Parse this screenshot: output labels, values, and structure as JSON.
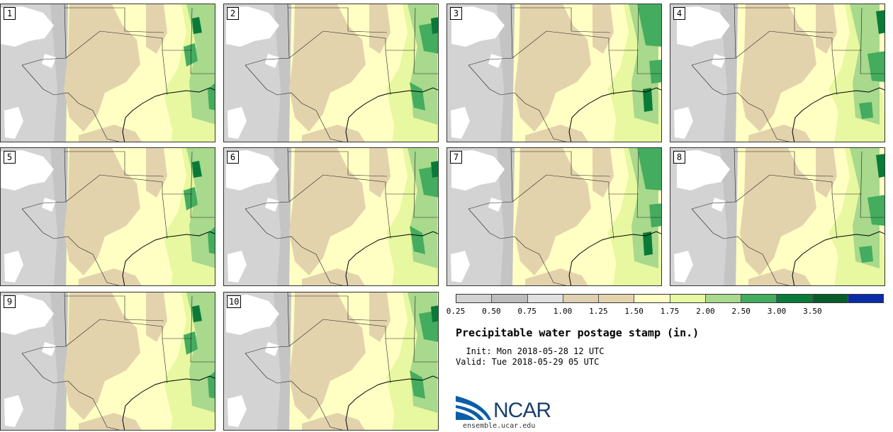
{
  "panels": [
    {
      "id": "1",
      "variant": 0
    },
    {
      "id": "2",
      "variant": 1
    },
    {
      "id": "3",
      "variant": 2
    },
    {
      "id": "4",
      "variant": 3
    },
    {
      "id": "5",
      "variant": 0
    },
    {
      "id": "6",
      "variant": 1
    },
    {
      "id": "7",
      "variant": 2
    },
    {
      "id": "8",
      "variant": 3
    },
    {
      "id": "9",
      "variant": 0
    },
    {
      "id": "10",
      "variant": 1
    }
  ],
  "colorbar": {
    "ticks": [
      "0.25",
      "0.50",
      "0.75",
      "1.00",
      "1.25",
      "1.50",
      "1.75",
      "2.00",
      "2.50",
      "3.00",
      "3.50"
    ],
    "colors": [
      "#d3d3d3",
      "#bdbdbd",
      "#e0e0e0",
      "#dfd0b0",
      "#e3d3ad",
      "#ffffc4",
      "#e8f8a0",
      "#a8d98c",
      "#44ac5e",
      "#0a7a38",
      "#085c2a",
      "#0a2ca8"
    ]
  },
  "map_colors": {
    "land": "#ffffc4",
    "white": "#ffffff",
    "grey": "#d3d3d3",
    "dark_grey": "#bdbdbd",
    "tan": "#e3d3ad",
    "light_green": "#e8f8a0",
    "green": "#a8d98c",
    "mid_green": "#44ac5e",
    "dark_green": "#0a7a38"
  },
  "title": "Precipitable water postage stamp (in.)",
  "init_line": "  Init: Mon 2018-05-28 12 UTC",
  "valid_line": "Valid: Tue 2018-05-29 05 UTC",
  "logo": {
    "word": "NCAR",
    "url": "ensemble.ucar.edu"
  }
}
